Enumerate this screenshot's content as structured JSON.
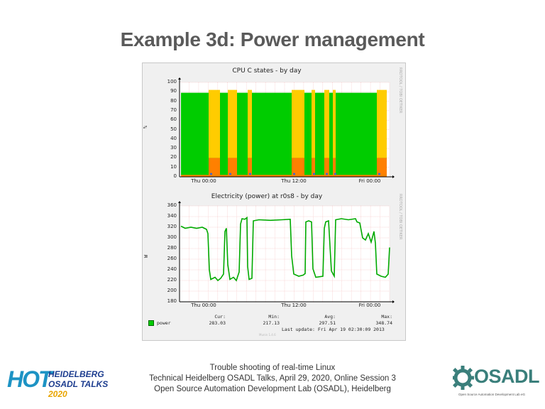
{
  "slide": {
    "title": "Example 3d: Power management"
  },
  "cpu_graph": {
    "title": "CPU C states - by day",
    "side_label": "RRDTOOL / TOBI OETIKER",
    "y_unit": "%",
    "y_ticks": [
      "100",
      "90",
      "80",
      "70",
      "60",
      "50",
      "40",
      "30",
      "20",
      "10",
      "0"
    ],
    "x_ticks": [
      "Thu 00:00",
      "Thu 12:00",
      "Fri 00:00"
    ],
    "colors": {
      "green": "#00cc00",
      "yellow": "#ffcc00",
      "orange": "#ff8000",
      "blue": "#4466cc"
    }
  },
  "power_graph": {
    "title": "Electricity (power) at r0s8 - by day",
    "side_label": "RRDTOOL / TOBI OETIKER",
    "y_unit": "W",
    "y_ticks": [
      "360",
      "340",
      "320",
      "300",
      "280",
      "260",
      "240",
      "220",
      "200",
      "180"
    ],
    "x_ticks": [
      "Thu 00:00",
      "Thu 12:00",
      "Fri 00:00"
    ],
    "legend_label": "power",
    "stats": {
      "cur_label": "Cur:",
      "cur_value": "283.03",
      "min_label": "Min:",
      "min_value": "217.13",
      "avg_label": "Avg:",
      "avg_value": "297.51",
      "max_label": "Max:",
      "max_value": "348.74"
    },
    "last_update": "Last update: Fri Apr 19 02:30:09 2013",
    "munin_version": "Munin 1.4.6",
    "line_color": "#00aa00"
  },
  "footer": {
    "line1": "Trouble shooting of real-time Linux",
    "line2": "Technical Heidelberg OSADL Talks, April 29, 2020, Online Session 3",
    "line3": "Open Source Automation Development Lab (OSADL), Heidelberg"
  },
  "logo_hot": {
    "letters": "HOT",
    "line1": "HEIDELBERG",
    "line2": "OSADL TALKS",
    "year": "2020"
  },
  "logo_osadl": {
    "word": "OSADL",
    "subtitle": "Open Source Automation Development Lab eG"
  }
}
